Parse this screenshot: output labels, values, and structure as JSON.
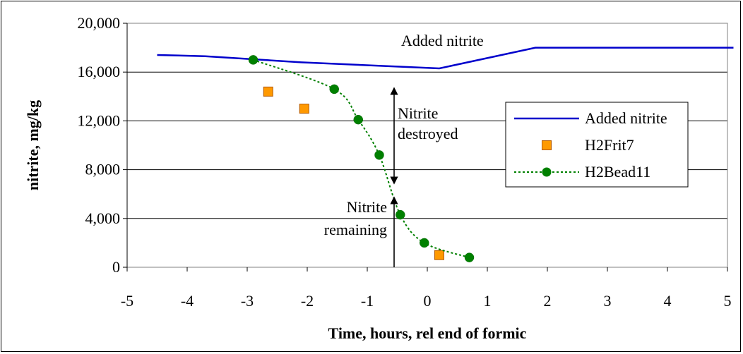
{
  "chart_data": {
    "type": "line",
    "title": "",
    "xlabel": "Time, hours, rel end of formic",
    "ylabel": "nitrite, mg/kg",
    "xlim": [
      -5,
      5
    ],
    "ylim": [
      0,
      20000
    ],
    "x_ticks": [
      "-5",
      "-4",
      "-3",
      "-2",
      "-1",
      "0",
      "1",
      "2",
      "3",
      "4",
      "5"
    ],
    "y_ticks": [
      "0",
      "4,000",
      "8,000",
      "12,000",
      "16,000",
      "20,000"
    ],
    "grid": "horizontal",
    "legend_position": "right",
    "series": [
      {
        "name": "Added nitrite",
        "style": "solid-line",
        "color": "#0000cc",
        "x": [
          -4.5,
          -3.7,
          -2.1,
          0.2,
          1.8,
          5.1
        ],
        "y": [
          17400,
          17300,
          16800,
          16300,
          18000,
          18000
        ]
      },
      {
        "name": "H2Frit7",
        "style": "square-markers",
        "color": "#ff9900",
        "x": [
          -2.65,
          -2.05,
          0.2
        ],
        "y": [
          14400,
          13000,
          1000
        ]
      },
      {
        "name": "H2Bead11",
        "style": "dotted-line-circle-markers",
        "color": "#008000",
        "x": [
          -2.9,
          -1.55,
          -1.15,
          -0.8,
          -0.45,
          -0.05,
          0.7
        ],
        "y": [
          17000,
          14600,
          12100,
          9200,
          4300,
          2000,
          800
        ]
      }
    ],
    "annotations": {
      "added_nitrite": "Added nitrite",
      "destroyed_line1": "Nitrite",
      "destroyed_line2": "destroyed",
      "remaining_line1": "Nitrite",
      "remaining_line2": "remaining"
    }
  }
}
